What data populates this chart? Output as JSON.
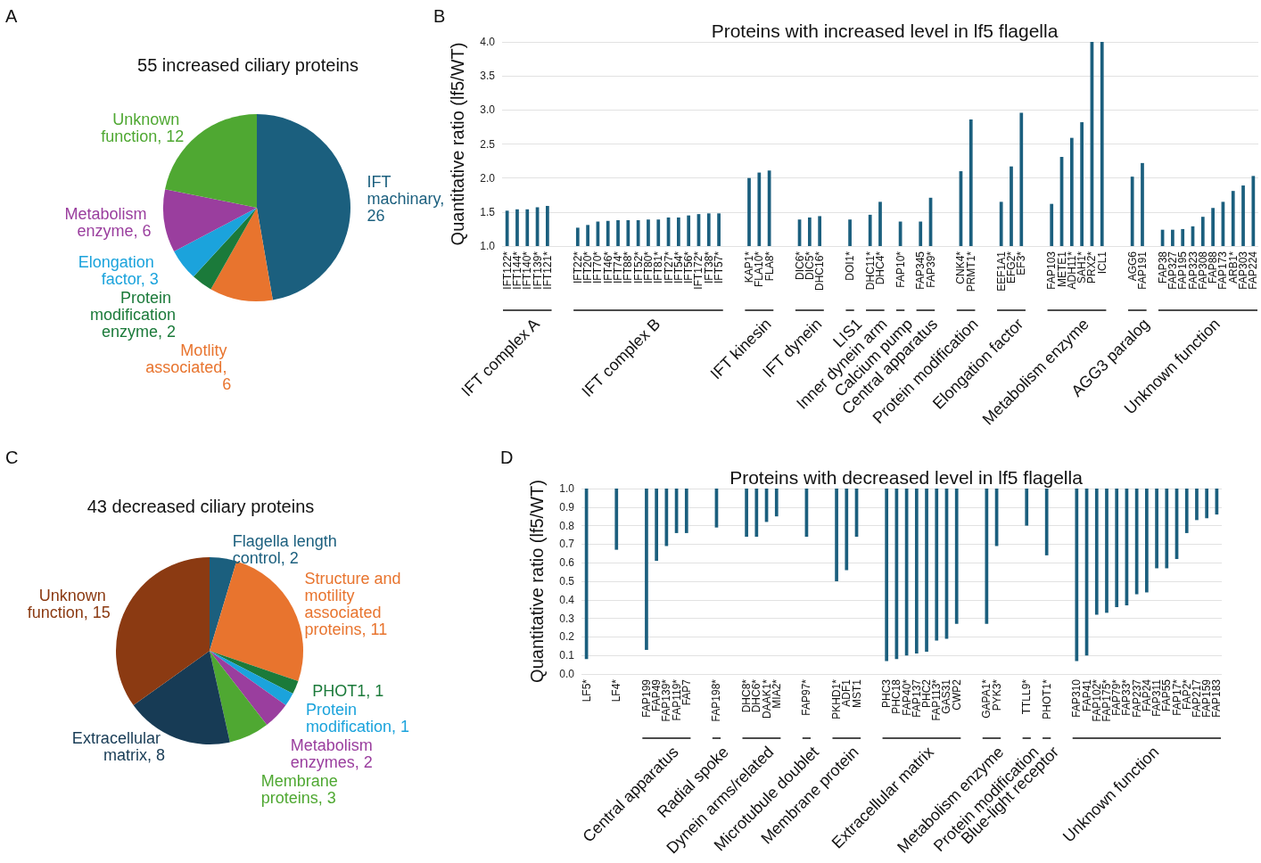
{
  "chart_data": [
    {
      "type": "pie",
      "title": "55 increased ciliary proteins",
      "annotations": [
        "A"
      ],
      "categories": [
        "IFT machinary, 26",
        "Motlity associated, 6",
        "Protein modification enzyme, 2",
        "Elongation factor, 3",
        "Metabolism enzyme, 6",
        "Unknown function, 12"
      ],
      "values": [
        26,
        6,
        2,
        3,
        6,
        12
      ],
      "colors": [
        "#1b5f7e",
        "#e8742e",
        "#1b7a3a",
        "#1ba3dc",
        "#9a3e9e",
        "#4fa832"
      ]
    },
    {
      "type": "bar",
      "title": "Proteins with increased level in lf5 flagella",
      "ylabel": "Quantitative ratio (lf5/WT)",
      "color": "#1b5f7e",
      "grid": "y",
      "ylim": [
        1.0,
        4.0
      ],
      "yticks": [
        {
          "value": 1.0,
          "label": "1.0"
        },
        {
          "value": 1.5,
          "label": "1.5"
        },
        {
          "value": 2.0,
          "label": "2.0"
        },
        {
          "value": 2.5,
          "label": "2.5"
        },
        {
          "value": 3.0,
          "label": "3.0"
        },
        {
          "value": 3.5,
          "label": "3.5"
        },
        {
          "value": 4.0,
          "label": "4.0"
        }
      ],
      "categories": [
        "IFT122*",
        "IFT144*",
        "IFT140*",
        "IFT139*",
        "IFT121*",
        null,
        null,
        "IFT22*",
        "IFT20*",
        "IFT70*",
        "IFT46*",
        "IFT74*",
        "IFT88*",
        "IFT52*",
        "IFT80*",
        "IFT81*",
        "IFT27*",
        "IFT54*",
        "IFT56*",
        "IFT172*",
        "IFT38*",
        "IFT57*",
        null,
        null,
        "KAP1*",
        "FLA10*",
        "FLA8*",
        null,
        null,
        "DIC6*",
        "DIC5*",
        "DHC16*",
        null,
        null,
        "DOI1*",
        null,
        "DHC11*",
        "DHC4*",
        null,
        "FAP10*",
        null,
        "FAP345",
        "FAP39*",
        null,
        null,
        "CNK4*",
        "PRMT1*",
        null,
        null,
        "EEF1A1",
        "EFG2*",
        "EF3*",
        null,
        null,
        "FAP103",
        "METE1",
        "ADH11*",
        "SAH1*",
        "PRX2*",
        "ICL1",
        null,
        null,
        "AGG6",
        "FAP191",
        null,
        "FAP38",
        "FAP327",
        "FAP195",
        "FAP323",
        "FAP308",
        "FAP88",
        "FAP173",
        "ARB1*",
        "FAP303",
        "FAP224"
      ],
      "values": [
        1.52,
        1.54,
        1.54,
        1.57,
        1.59,
        null,
        null,
        1.27,
        1.31,
        1.36,
        1.37,
        1.38,
        1.38,
        1.38,
        1.39,
        1.39,
        1.42,
        1.42,
        1.45,
        1.47,
        1.48,
        1.48,
        null,
        null,
        2.0,
        2.08,
        2.11,
        null,
        null,
        1.39,
        1.42,
        1.44,
        null,
        null,
        1.39,
        null,
        1.46,
        1.65,
        null,
        1.36,
        null,
        1.36,
        1.71,
        null,
        null,
        2.1,
        2.86,
        null,
        null,
        1.65,
        2.17,
        2.96,
        null,
        null,
        1.62,
        2.31,
        2.59,
        2.82,
        4.0,
        4.0,
        null,
        null,
        2.02,
        2.22,
        null,
        1.24,
        1.24,
        1.25,
        1.29,
        1.43,
        1.56,
        1.65,
        1.81,
        1.89,
        2.03
      ],
      "annotations": [
        "B",
        "IFT complex A",
        "IFT complex B",
        "IFT kinesin",
        "IFT dynein",
        "LIS1",
        "Inner dynein arm",
        "Calcium pump",
        "Central apparatus",
        "Protein modification",
        "Elongation factor",
        "Metabolism enzyme",
        "AGG3 paralog",
        "Unknown function"
      ]
    },
    {
      "type": "pie",
      "title": "43 decreased ciliary proteins",
      "annotations": [
        "C"
      ],
      "categories": [
        "Flagella length control, 2",
        "Structure and motility associated proteins, 11",
        "PHOT1, 1",
        "Protein modification, 1",
        "Metabolism enzymes, 2",
        "Membrane proteins, 3",
        "Extracellular matrix, 8",
        "Unknown function, 15"
      ],
      "values": [
        2,
        11,
        1,
        1,
        2,
        3,
        8,
        15
      ],
      "colors": [
        "#1b5f7e",
        "#e8742e",
        "#1b7a3a",
        "#1ba3dc",
        "#9a3e9e",
        "#4fa832",
        "#173b55",
        "#8b3a12"
      ]
    },
    {
      "type": "bar",
      "title": "Proteins with decreased level in lf5 flagella",
      "ylabel": "Quantitative ratio (lf5/WT)",
      "color": "#1b5f7e",
      "grid": "y",
      "ylim": [
        0.0,
        1.0
      ],
      "yticks": [
        {
          "value": 0,
          "label": "0.0"
        },
        {
          "value": 0.1,
          "label": "0.1"
        },
        {
          "value": 0.2,
          "label": "0.2"
        },
        {
          "value": 0.3,
          "label": "0.3"
        },
        {
          "value": 0.4,
          "label": "0.4"
        },
        {
          "value": 0.5,
          "label": "0.5"
        },
        {
          "value": 0.6,
          "label": "0.6"
        },
        {
          "value": 0.7,
          "label": "0.7"
        },
        {
          "value": 0.8,
          "label": "0.8"
        },
        {
          "value": 0.9,
          "label": "0.9"
        },
        {
          "value": 1.0,
          "label": "1.0"
        }
      ],
      "categories": [
        "LF5*",
        null,
        null,
        "LF4*",
        null,
        null,
        "FAP199",
        "FAP49",
        "FAP139*",
        "FAP119*",
        "FAP7",
        null,
        null,
        "FAP198*",
        null,
        null,
        "DHC8*",
        "DHC6*",
        "DAAK1*",
        "MIA2*",
        null,
        null,
        "FAP97*",
        null,
        null,
        "PKHD1*",
        "ADF1",
        "MST1",
        null,
        null,
        "PHC3",
        "PHC18",
        "FAP40*",
        "FAP137",
        "PHC2",
        "FAP113*",
        "GAS31",
        "CWP2",
        null,
        null,
        "GAPA1*",
        "PYK3*",
        null,
        null,
        "TTLL9*",
        null,
        "PHOT1*",
        null,
        null,
        "FAP310",
        "FAP41",
        "FAP102*",
        "FAP175*",
        "FAP79*",
        "FAP33*",
        "FAP237",
        "FAP24",
        "FAP311",
        "FAP55",
        "FAP17*",
        "FAP2*",
        "FAP217",
        "FAP159",
        "FAP183"
      ],
      "base": [
        1,
        null,
        null,
        1,
        null,
        null,
        1,
        1,
        1,
        1,
        1,
        null,
        null,
        1,
        null,
        null,
        1,
        1,
        1,
        1,
        null,
        null,
        1,
        null,
        null,
        1,
        1,
        1,
        null,
        null,
        1,
        1,
        1,
        1,
        1,
        1,
        1,
        1,
        null,
        null,
        1,
        1,
        null,
        null,
        1,
        null,
        1,
        null,
        null,
        1,
        1,
        1,
        1,
        1,
        1,
        1,
        1,
        1,
        1,
        1,
        1,
        1,
        1,
        1
      ],
      "values": [
        -0.92,
        null,
        null,
        -0.33,
        null,
        null,
        -0.87,
        -0.39,
        -0.31,
        -0.24,
        -0.24,
        null,
        null,
        -0.21,
        null,
        null,
        -0.26,
        -0.26,
        -0.18,
        -0.15,
        null,
        null,
        -0.26,
        null,
        null,
        -0.5,
        -0.44,
        -0.26,
        null,
        null,
        -0.93,
        -0.92,
        -0.9,
        -0.89,
        -0.88,
        -0.82,
        -0.81,
        -0.73,
        null,
        null,
        -0.73,
        -0.31,
        null,
        null,
        -0.2,
        null,
        -0.36,
        null,
        null,
        -0.93,
        -0.9,
        -0.68,
        -0.67,
        -0.64,
        -0.63,
        -0.57,
        -0.56,
        -0.43,
        -0.43,
        -0.38,
        -0.24,
        -0.17,
        -0.16,
        -0.14
      ],
      "annotations": [
        "D",
        "Central apparatus",
        "Radial spoke",
        "Dynein arms/related",
        "Microtubule doublet",
        "Membrane protein",
        "Extracellular matrix",
        "Metabolism enzyme",
        "Protein modification",
        "Blue-light receptor",
        "Unknown function"
      ]
    }
  ]
}
